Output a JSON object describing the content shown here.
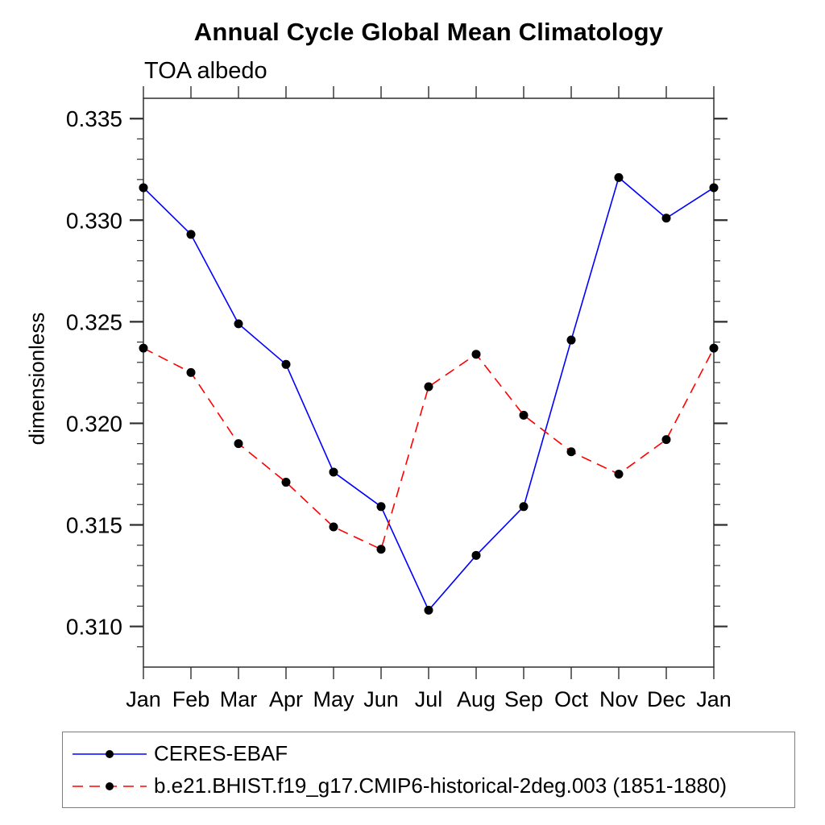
{
  "title": "Annual Cycle Global Mean Climatology",
  "subtitle": "TOA albedo",
  "ylabel": "dimensionless",
  "colors": {
    "axis": "#2e2e2e",
    "text": "#000000",
    "legend_border": "#7d7d7d",
    "series_obs": "#0000ff",
    "series_model": "#ff0000",
    "marker": "#000000"
  },
  "chart_data": {
    "type": "line",
    "title": "Annual Cycle Global Mean Climatology",
    "subtitle": "TOA albedo",
    "xlabel": "",
    "ylabel": "dimensionless",
    "x_categories": [
      "Jan",
      "Feb",
      "Mar",
      "Apr",
      "May",
      "Jun",
      "Jul",
      "Aug",
      "Sep",
      "Oct",
      "Nov",
      "Dec",
      "Jan"
    ],
    "ylim": [
      0.308,
      0.336
    ],
    "y_major_ticks": [
      0.31,
      0.315,
      0.32,
      0.325,
      0.33,
      0.335
    ],
    "y_minor_step": 0.001,
    "y_tick_decimals": 3,
    "grid": false,
    "legend_position": "bottom-left-box",
    "series": [
      {
        "name": "CERES-EBAF",
        "color": "#0000ff",
        "style": "solid",
        "marker": "circle",
        "marker_color": "#000000",
        "values": [
          0.3316,
          0.3293,
          0.3249,
          0.3229,
          0.3176,
          0.3159,
          0.3108,
          0.3135,
          0.3159,
          0.3241,
          0.3321,
          0.3301,
          0.3316
        ]
      },
      {
        "name": "b.e21.BHIST.f19_g17.CMIP6-historical-2deg.003 (1851-1880)",
        "color": "#ff0000",
        "style": "dashed",
        "marker": "circle",
        "marker_color": "#000000",
        "values": [
          0.3237,
          0.3225,
          0.319,
          0.3171,
          0.3149,
          0.3138,
          0.3218,
          0.3234,
          0.3204,
          0.3186,
          0.3175,
          0.3192,
          0.3237
        ]
      }
    ]
  }
}
